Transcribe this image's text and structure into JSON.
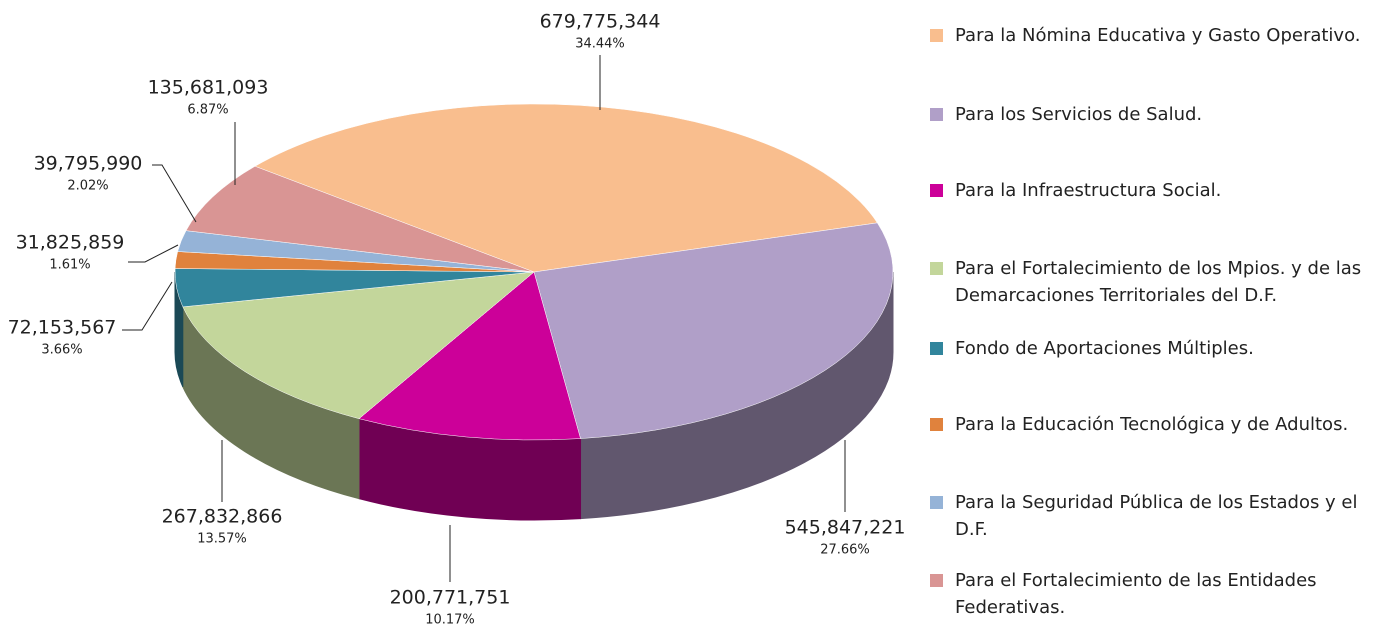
{
  "chart_data": {
    "type": "pie3d",
    "categories": [
      "Para la Nómina Educativa y Gasto Operativo.",
      "Para los Servicios de Salud.",
      "Para la Infraestructura Social.",
      "Para el Fortalecimiento de los Mpios. y de las Demarcaciones Territoriales del D.F.",
      "Fondo de Aportaciones Múltiples.",
      "Para la Educación Tecnológica y de Adultos.",
      "Para la Seguridad Pública de los Estados y el D.F.",
      "Para el Fortalecimiento de las Entidades Federativas."
    ],
    "values": [
      679775344,
      545847221,
      200771751,
      267832866,
      72153567,
      31825859,
      39795990,
      135681093
    ],
    "value_labels": [
      "679,775,344",
      "545,847,221",
      "200,771,751",
      "267,832,866",
      "72,153,567",
      "31,825,859",
      "39,795,990",
      "135,681,093"
    ],
    "percentages": [
      34.44,
      27.66,
      10.17,
      13.57,
      3.66,
      1.61,
      2.02,
      6.87
    ],
    "percentage_labels": [
      "34.44%",
      "27.66%",
      "10.17%",
      "13.57%",
      "3.66%",
      "1.61%",
      "2.02%",
      "6.87%"
    ],
    "colors": [
      "#f9be8e",
      "#b09fc8",
      "#cc0099",
      "#c3d69b",
      "#31859c",
      "#e0823d",
      "#95b3d7",
      "#d99594"
    ],
    "legend": "right"
  }
}
